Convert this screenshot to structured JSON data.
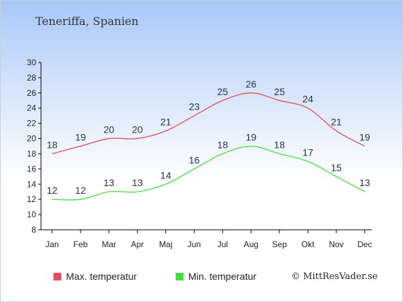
{
  "header": {
    "location": "Teneriffa, Spanien"
  },
  "legend": {
    "max_label": "Max. temperatur",
    "min_label": "Min. temperatur",
    "max_color": "#e84a5a",
    "min_color": "#3ee03a"
  },
  "credit": "© MittResVader.se",
  "chart_data": {
    "type": "line",
    "categories": [
      "Jan",
      "Feb",
      "Mar",
      "Apr",
      "Maj",
      "Jun",
      "Jul",
      "Aug",
      "Sep",
      "Okt",
      "Nov",
      "Dec"
    ],
    "ylim": [
      8,
      30
    ],
    "yticks": [
      8,
      10,
      12,
      14,
      16,
      18,
      20,
      22,
      24,
      26,
      28,
      30
    ],
    "grid": false,
    "legend_position": "bottom-left",
    "series": [
      {
        "name": "Max. temperatur",
        "color": "#e84a5a",
        "values": [
          18,
          19,
          20,
          20,
          21,
          23,
          25,
          26,
          25,
          24,
          21,
          19
        ]
      },
      {
        "name": "Min. temperatur",
        "color": "#3ee03a",
        "values": [
          12,
          12,
          13,
          13,
          14,
          16,
          18,
          19,
          18,
          17,
          15,
          13
        ]
      }
    ]
  }
}
